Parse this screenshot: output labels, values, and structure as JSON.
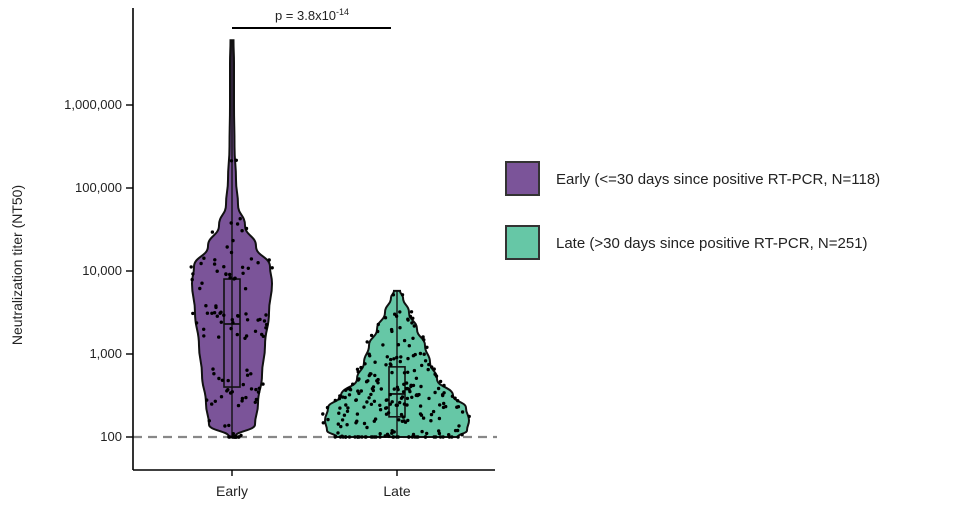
{
  "chart_data": {
    "type": "violin",
    "title": "",
    "xlabel": "",
    "ylabel": "Neutralization titer (NT50)",
    "y_scale": "log10",
    "ylim": [
      70,
      10000000
    ],
    "y_ticks": [
      {
        "value": 100,
        "label": "100"
      },
      {
        "value": 1000,
        "label": "1,000"
      },
      {
        "value": 10000,
        "label": "10,000"
      },
      {
        "value": 100000,
        "label": "100,000"
      },
      {
        "value": 1000000,
        "label": "1,000,000"
      }
    ],
    "categories": [
      "Early",
      "Late"
    ],
    "series": [
      {
        "name": "Early (<=30 days since positive RT-PCR, N=118)",
        "category": "Early",
        "color": "#7b5499",
        "n": 118,
        "min": 100,
        "q1": 400,
        "median": 2300,
        "q3": 8000,
        "max": 6000000
      },
      {
        "name": "Late (>30 days since positive RT-PCR, N=251)",
        "category": "Late",
        "color": "#66c7a6",
        "n": 251,
        "min": 100,
        "q1": 175,
        "median": 330,
        "q3": 700,
        "max": 5800
      }
    ],
    "reference_line": {
      "value": 100,
      "style": "dashed",
      "color": "#888888"
    },
    "annotation": {
      "text": "p = 3.8x10",
      "superscript": "-14",
      "between": [
        "Early",
        "Late"
      ]
    },
    "legend_position": "right",
    "grid": false
  }
}
